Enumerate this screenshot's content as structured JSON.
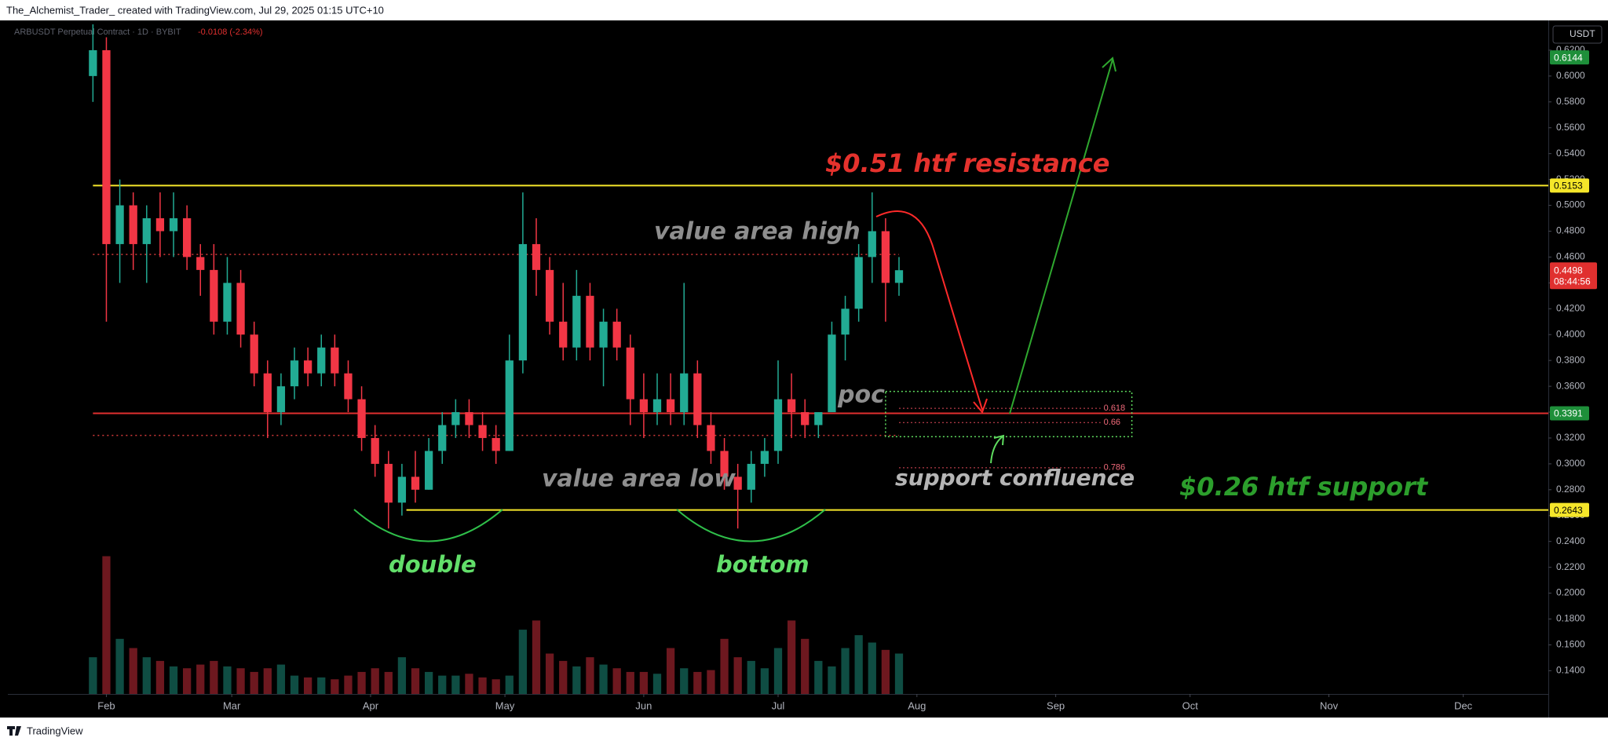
{
  "header": {
    "text": "The_Alchemist_Trader_ created with TradingView.com, Jul 29, 2025 01:15 UTC+10"
  },
  "footer": {
    "brand": "TradingView"
  },
  "chart_data": {
    "type": "candlestick",
    "symbol": "ARBUSDT Perpetual Contract · 1D · BYBIT",
    "change": "-0.0108 (-2.34%)",
    "currency": "USDT",
    "up_color": "#22ab94",
    "down_color": "#f23645",
    "grid": false,
    "x": [
      -3,
      0,
      3,
      6,
      9,
      12,
      15,
      18,
      21,
      24,
      27,
      30,
      33,
      36,
      39,
      42,
      45,
      48,
      51,
      54,
      57,
      60,
      63,
      66,
      69,
      72,
      75,
      78,
      81,
      84,
      87,
      90,
      93,
      96,
      99,
      102,
      105,
      108,
      111,
      114,
      117,
      120,
      123,
      126,
      129,
      132,
      135,
      138,
      141,
      144,
      147,
      150,
      153,
      156,
      159,
      162,
      165,
      168,
      171,
      174,
      177
    ],
    "open": [
      0.6,
      0.62,
      0.47,
      0.5,
      0.47,
      0.49,
      0.48,
      0.49,
      0.46,
      0.45,
      0.41,
      0.44,
      0.4,
      0.37,
      0.34,
      0.36,
      0.38,
      0.37,
      0.39,
      0.37,
      0.35,
      0.32,
      0.3,
      0.27,
      0.29,
      0.28,
      0.31,
      0.33,
      0.34,
      0.33,
      0.32,
      0.31,
      0.38,
      0.47,
      0.45,
      0.41,
      0.39,
      0.43,
      0.39,
      0.41,
      0.39,
      0.35,
      0.34,
      0.35,
      0.34,
      0.37,
      0.33,
      0.31,
      0.29,
      0.28,
      0.3,
      0.31,
      0.35,
      0.34,
      0.33,
      0.34,
      0.4,
      0.42,
      0.46,
      0.48,
      0.44
    ],
    "high": [
      0.64,
      0.63,
      0.52,
      0.51,
      0.5,
      0.51,
      0.51,
      0.5,
      0.47,
      0.47,
      0.46,
      0.45,
      0.41,
      0.38,
      0.37,
      0.39,
      0.39,
      0.4,
      0.4,
      0.38,
      0.36,
      0.33,
      0.31,
      0.3,
      0.31,
      0.32,
      0.34,
      0.35,
      0.35,
      0.34,
      0.33,
      0.4,
      0.51,
      0.49,
      0.46,
      0.44,
      0.45,
      0.44,
      0.42,
      0.42,
      0.4,
      0.37,
      0.37,
      0.37,
      0.44,
      0.38,
      0.34,
      0.32,
      0.3,
      0.31,
      0.32,
      0.38,
      0.37,
      0.35,
      0.34,
      0.41,
      0.43,
      0.47,
      0.51,
      0.49,
      0.46
    ],
    "low": [
      0.58,
      0.41,
      0.44,
      0.45,
      0.44,
      0.46,
      0.46,
      0.45,
      0.43,
      0.4,
      0.4,
      0.39,
      0.36,
      0.32,
      0.33,
      0.35,
      0.36,
      0.36,
      0.36,
      0.34,
      0.31,
      0.29,
      0.25,
      0.26,
      0.27,
      0.28,
      0.3,
      0.32,
      0.32,
      0.31,
      0.3,
      0.31,
      0.37,
      0.43,
      0.4,
      0.38,
      0.38,
      0.38,
      0.36,
      0.38,
      0.33,
      0.32,
      0.33,
      0.33,
      0.33,
      0.32,
      0.3,
      0.28,
      0.25,
      0.27,
      0.29,
      0.3,
      0.32,
      0.32,
      0.32,
      0.34,
      0.38,
      0.41,
      0.44,
      0.41,
      0.43
    ],
    "close": [
      0.62,
      0.47,
      0.5,
      0.47,
      0.49,
      0.48,
      0.49,
      0.46,
      0.45,
      0.41,
      0.44,
      0.4,
      0.37,
      0.34,
      0.36,
      0.38,
      0.37,
      0.39,
      0.37,
      0.35,
      0.32,
      0.3,
      0.27,
      0.29,
      0.28,
      0.31,
      0.33,
      0.34,
      0.33,
      0.32,
      0.31,
      0.38,
      0.47,
      0.45,
      0.41,
      0.39,
      0.43,
      0.39,
      0.41,
      0.39,
      0.35,
      0.34,
      0.35,
      0.34,
      0.37,
      0.33,
      0.31,
      0.29,
      0.28,
      0.3,
      0.31,
      0.35,
      0.34,
      0.33,
      0.34,
      0.4,
      0.42,
      0.46,
      0.48,
      0.44,
      0.4498
    ],
    "volume": [
      20,
      75,
      30,
      25,
      20,
      18,
      15,
      14,
      16,
      18,
      15,
      14,
      12,
      14,
      16,
      10,
      9,
      9,
      8,
      10,
      12,
      14,
      12,
      20,
      14,
      12,
      10,
      10,
      11,
      9,
      8,
      10,
      35,
      40,
      22,
      18,
      15,
      20,
      16,
      14,
      12,
      12,
      11,
      25,
      14,
      12,
      13,
      30,
      20,
      18,
      14,
      25,
      40,
      30,
      18,
      15,
      25,
      32,
      28,
      24,
      22
    ],
    "y2lim": [
      0,
      100
    ],
    "xlim": [
      -22,
      322
    ],
    "xticks": [
      {
        "value": 0,
        "label": "Feb"
      },
      {
        "value": 28,
        "label": "Mar"
      },
      {
        "value": 59,
        "label": "Apr"
      },
      {
        "value": 89,
        "label": "May"
      },
      {
        "value": 120,
        "label": "Jun"
      },
      {
        "value": 150,
        "label": "Jul"
      },
      {
        "value": 181,
        "label": "Aug"
      },
      {
        "value": 212,
        "label": "Sep"
      },
      {
        "value": 242,
        "label": "Oct"
      },
      {
        "value": 273,
        "label": "Nov"
      },
      {
        "value": 303,
        "label": "Dec"
      }
    ],
    "ylim": [
      0.122,
      0.64
    ],
    "yticks": [
      {
        "value": 0.14,
        "label": "0.1400"
      },
      {
        "value": 0.16,
        "label": "0.1600"
      },
      {
        "value": 0.18,
        "label": "0.1800"
      },
      {
        "value": 0.2,
        "label": "0.2000"
      },
      {
        "value": 0.22,
        "label": "0.2200"
      },
      {
        "value": 0.24,
        "label": "0.2400"
      },
      {
        "value": 0.26,
        "label": "0.2600"
      },
      {
        "value": 0.28,
        "label": "0.2800"
      },
      {
        "value": 0.3,
        "label": "0.3000"
      },
      {
        "value": 0.32,
        "label": "0.3200"
      },
      {
        "value": 0.34,
        "label": "0.3400"
      },
      {
        "value": 0.36,
        "label": "0.3600"
      },
      {
        "value": 0.38,
        "label": "0.3800"
      },
      {
        "value": 0.4,
        "label": "0.4000"
      },
      {
        "value": 0.42,
        "label": "0.4200"
      },
      {
        "value": 0.44,
        "label": "0.4400"
      },
      {
        "value": 0.46,
        "label": "0.4600"
      },
      {
        "value": 0.48,
        "label": "0.4800"
      },
      {
        "value": 0.5,
        "label": "0.5000"
      },
      {
        "value": 0.52,
        "label": "0.5200"
      },
      {
        "value": 0.54,
        "label": "0.5400"
      },
      {
        "value": 0.56,
        "label": "0.5600"
      },
      {
        "value": 0.58,
        "label": "0.5800"
      },
      {
        "value": 0.6,
        "label": "0.6000"
      },
      {
        "value": 0.62,
        "label": "0.6200"
      }
    ],
    "levels": [
      {
        "value": 0.5153,
        "x": [
          -3,
          322
        ],
        "color": "#f5e62a",
        "style": "solid"
      },
      {
        "value": 0.2643,
        "x": [
          67,
          322
        ],
        "color": "#f5e62a",
        "style": "solid"
      },
      {
        "value": 0.3391,
        "x": [
          -3,
          322
        ],
        "color": "#e0302f",
        "style": "solid"
      },
      {
        "value": 0.462,
        "x": [
          -3,
          177
        ],
        "color": "#d23a3a",
        "style": "dotted"
      },
      {
        "value": 0.322,
        "x": [
          -3,
          177
        ],
        "color": "#d23a3a",
        "style": "dotted"
      }
    ],
    "axis_labels": [
      {
        "value": 0.6144,
        "color": "#1e8f3a",
        "text_color": "#ffffff"
      },
      {
        "value": 0.5153,
        "color": "#f5e62a",
        "text_color": "#000000"
      },
      {
        "value": 0.3391,
        "color": "#1e8f3a",
        "text_color": "#ffffff"
      },
      {
        "value": 0.2643,
        "color": "#f5e62a",
        "text_color": "#000000"
      }
    ],
    "last_price": {
      "value": 0.4498,
      "countdown": "08:44:56",
      "color": "#e0302f"
    },
    "fib_box": {
      "top": 0.356,
      "bottom": 0.321,
      "x": [
        174,
        229
      ],
      "color": "#5fdc5f"
    },
    "fib": [
      {
        "ratio": 0.618,
        "price": 0.343
      },
      {
        "ratio": 0.66,
        "price": 0.332
      },
      {
        "ratio": 0.786,
        "price": 0.297
      }
    ],
    "fib_x": [
      177,
      222
    ],
    "annotations": {
      "resistance": "$0.51 htf resistance",
      "vah": "value area high",
      "poc": "poc",
      "val": "value area low",
      "confluence": "support confluence",
      "support": "$0.26 htf support",
      "double": "double",
      "bottom": "bottom"
    }
  }
}
